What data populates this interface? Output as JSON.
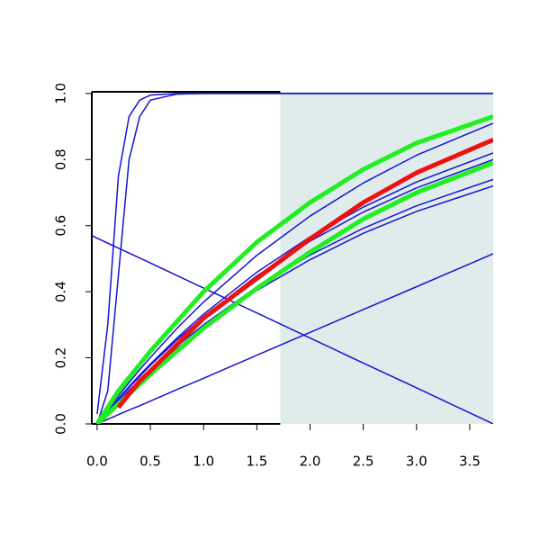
{
  "chart_data": {
    "type": "line",
    "x": [
      -0.05,
      0,
      0.1,
      0.2,
      0.3,
      0.4,
      0.5,
      0.75,
      1,
      1.5,
      2,
      2.5,
      3,
      3.72
    ],
    "xlim": [
      -0.05,
      3.72
    ],
    "ylim": [
      0,
      1.005
    ],
    "xticks": [
      {
        "value": 0,
        "label": "0.0"
      },
      {
        "value": 0.5,
        "label": "0.5"
      },
      {
        "value": 1,
        "label": "1.0"
      },
      {
        "value": 1.5,
        "label": "1.5"
      },
      {
        "value": 2,
        "label": "2.0"
      },
      {
        "value": 2.5,
        "label": "2.5"
      },
      {
        "value": 3,
        "label": "3.0"
      },
      {
        "value": 3.5,
        "label": "3.5"
      }
    ],
    "yticks": [
      {
        "value": 0,
        "label": "0.0"
      },
      {
        "value": 0.2,
        "label": "0.2"
      },
      {
        "value": 0.4,
        "label": "0.4"
      },
      {
        "value": 0.6,
        "label": "0.6"
      },
      {
        "value": 0.8,
        "label": "0.8"
      },
      {
        "value": 1,
        "label": "1.0"
      }
    ],
    "shaded_xrange": [
      1.72,
      3.72
    ],
    "shade_color": "#e0ecec",
    "series": [
      {
        "color": "#1414d2",
        "line_width": 1.5,
        "values": [
          0.57,
          0.562,
          0.547,
          0.532,
          0.517,
          0.502,
          0.487,
          0.449,
          0.411,
          0.336,
          0.26,
          0.184,
          0.109,
          0
        ]
      },
      {
        "color": "#1414d2",
        "line_width": 1.5,
        "values": [
          null,
          0,
          0.014,
          0.028,
          0.042,
          0.055,
          0.069,
          0.104,
          0.138,
          0.208,
          0.277,
          0.346,
          0.415,
          0.515
        ]
      },
      {
        "color": "#1414d2",
        "line_width": 1.5,
        "values": [
          null,
          0.03,
          0.3,
          0.75,
          0.93,
          0.98,
          0.995,
          1,
          1,
          1,
          1,
          1,
          1,
          1
        ]
      },
      {
        "color": "#1414d2",
        "line_width": 1.5,
        "values": [
          null,
          0,
          0.1,
          0.45,
          0.8,
          0.93,
          0.98,
          0.998,
          1,
          1,
          1,
          1,
          1,
          1
        ]
      },
      {
        "color": "#1414d2",
        "line_width": 1.5,
        "values": [
          null,
          0,
          0.043,
          0.085,
          0.125,
          0.164,
          0.201,
          0.289,
          0.369,
          0.51,
          0.629,
          0.729,
          0.813,
          0.91
        ]
      },
      {
        "color": "#1414d2",
        "line_width": 1.5,
        "values": [
          null,
          0,
          0.038,
          0.077,
          0.113,
          0.148,
          0.181,
          0.26,
          0.332,
          0.459,
          0.566,
          0.656,
          0.732,
          0.82
        ]
      },
      {
        "color": "#1414d2",
        "line_width": 1.5,
        "values": [
          null,
          0,
          0.037,
          0.075,
          0.11,
          0.144,
          0.177,
          0.254,
          0.324,
          0.448,
          0.553,
          0.641,
          0.714,
          0.8
        ]
      },
      {
        "color": "#1414d2",
        "line_width": 1.5,
        "values": [
          null,
          0,
          0.035,
          0.069,
          0.102,
          0.133,
          0.164,
          0.235,
          0.3,
          0.415,
          0.511,
          0.592,
          0.66,
          0.74
        ]
      },
      {
        "color": "#1414d2",
        "line_width": 1.5,
        "values": [
          null,
          0,
          0.034,
          0.067,
          0.099,
          0.13,
          0.159,
          0.228,
          0.292,
          0.404,
          0.497,
          0.577,
          0.643,
          0.72
        ]
      },
      {
        "color": "#22ee22",
        "line_width": 5,
        "values": [
          null,
          0,
          0.05,
          0.1,
          0.14,
          0.18,
          0.22,
          0.31,
          0.4,
          0.55,
          0.67,
          0.77,
          0.85,
          0.93
        ]
      },
      {
        "color": "#22ee22",
        "line_width": 5,
        "values": [
          null,
          0,
          0.03,
          0.06,
          0.09,
          0.12,
          0.15,
          0.22,
          0.29,
          0.41,
          0.52,
          0.62,
          0.7,
          0.79
        ]
      },
      {
        "color": "#ee1111",
        "line_width": 5,
        "values": [
          null,
          null,
          null,
          0.05,
          0.09,
          0.13,
          0.16,
          0.24,
          0.32,
          0.44,
          0.56,
          0.67,
          0.76,
          0.86
        ]
      }
    ]
  }
}
